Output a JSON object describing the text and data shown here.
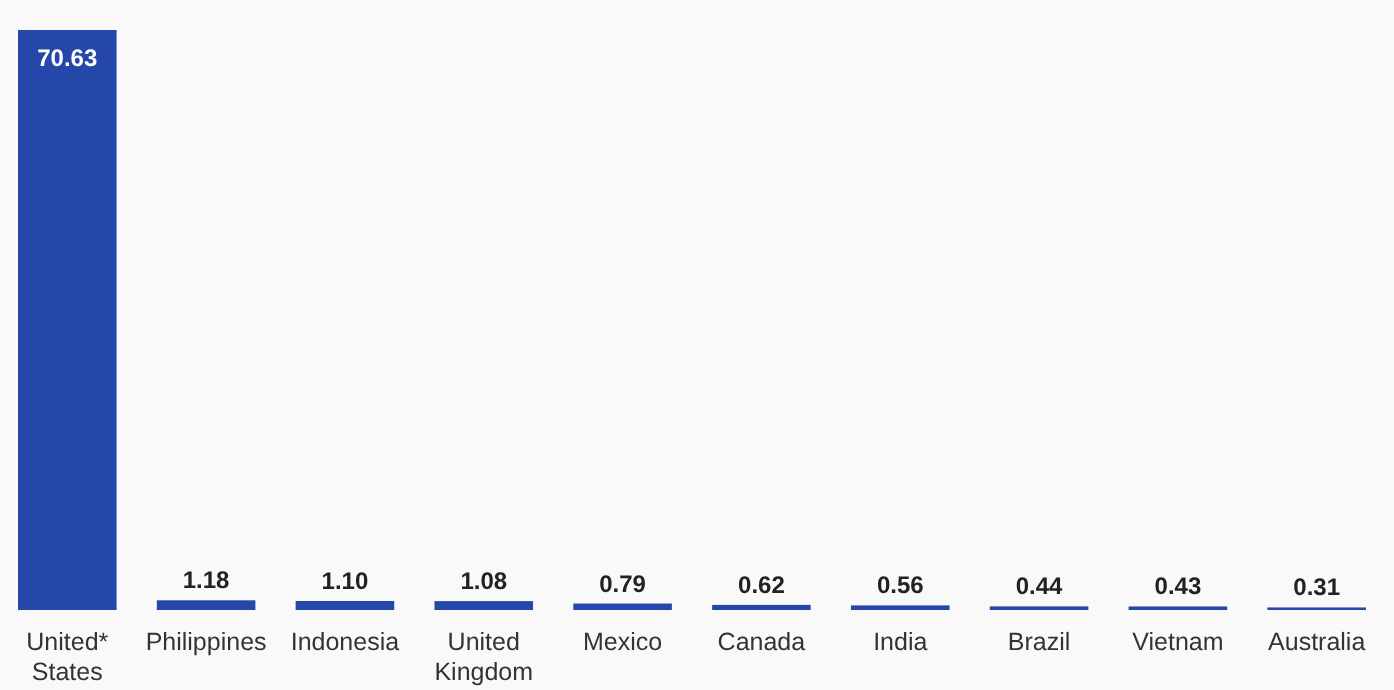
{
  "chart_data": {
    "type": "bar",
    "categories": [
      "United* States",
      "Philippines",
      "Indonesia",
      "United Kingdom",
      "Mexico",
      "Canada",
      "India",
      "Brazil",
      "Vietnam",
      "Australia"
    ],
    "values": [
      70.63,
      1.18,
      1.1,
      1.08,
      0.79,
      0.62,
      0.56,
      0.44,
      0.43,
      0.31
    ],
    "value_labels": [
      "70.63",
      "1.18",
      "1.10",
      "1.08",
      "0.79",
      "0.62",
      "0.56",
      "0.44",
      "0.43",
      "0.31"
    ],
    "color": "#2447a9",
    "ylim": [
      0,
      70.63
    ],
    "grid": false
  }
}
